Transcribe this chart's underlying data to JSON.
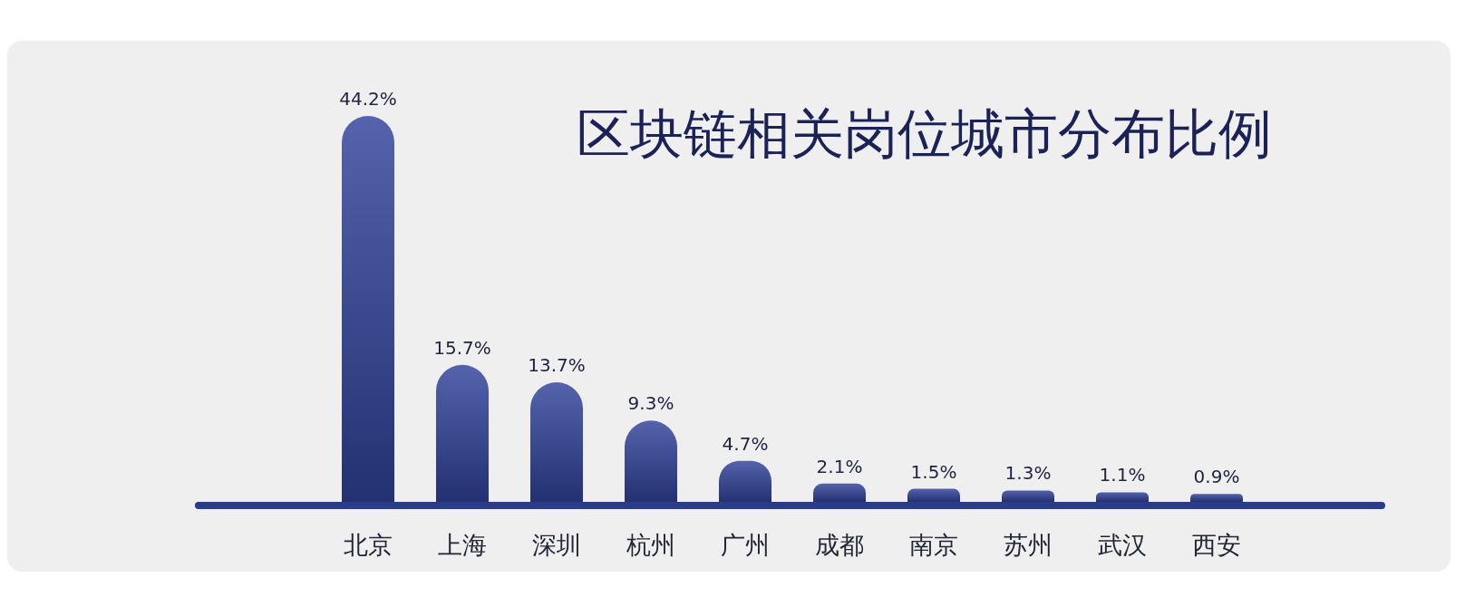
{
  "chart_data": {
    "type": "bar",
    "title": "区块链相关岗位城市分布比例",
    "categories": [
      "北京",
      "上海",
      "深圳",
      "杭州",
      "广州",
      "成都",
      "南京",
      "苏州",
      "武汉",
      "西安"
    ],
    "values": [
      44.2,
      15.7,
      13.7,
      9.3,
      4.7,
      2.1,
      1.5,
      1.3,
      1.1,
      0.9
    ],
    "value_labels": [
      "44.2%",
      "15.7%",
      "13.7%",
      "9.3%",
      "4.7%",
      "2.1%",
      "1.5%",
      "1.3%",
      "1.1%",
      "0.9%"
    ],
    "color": "#2f4198"
  }
}
